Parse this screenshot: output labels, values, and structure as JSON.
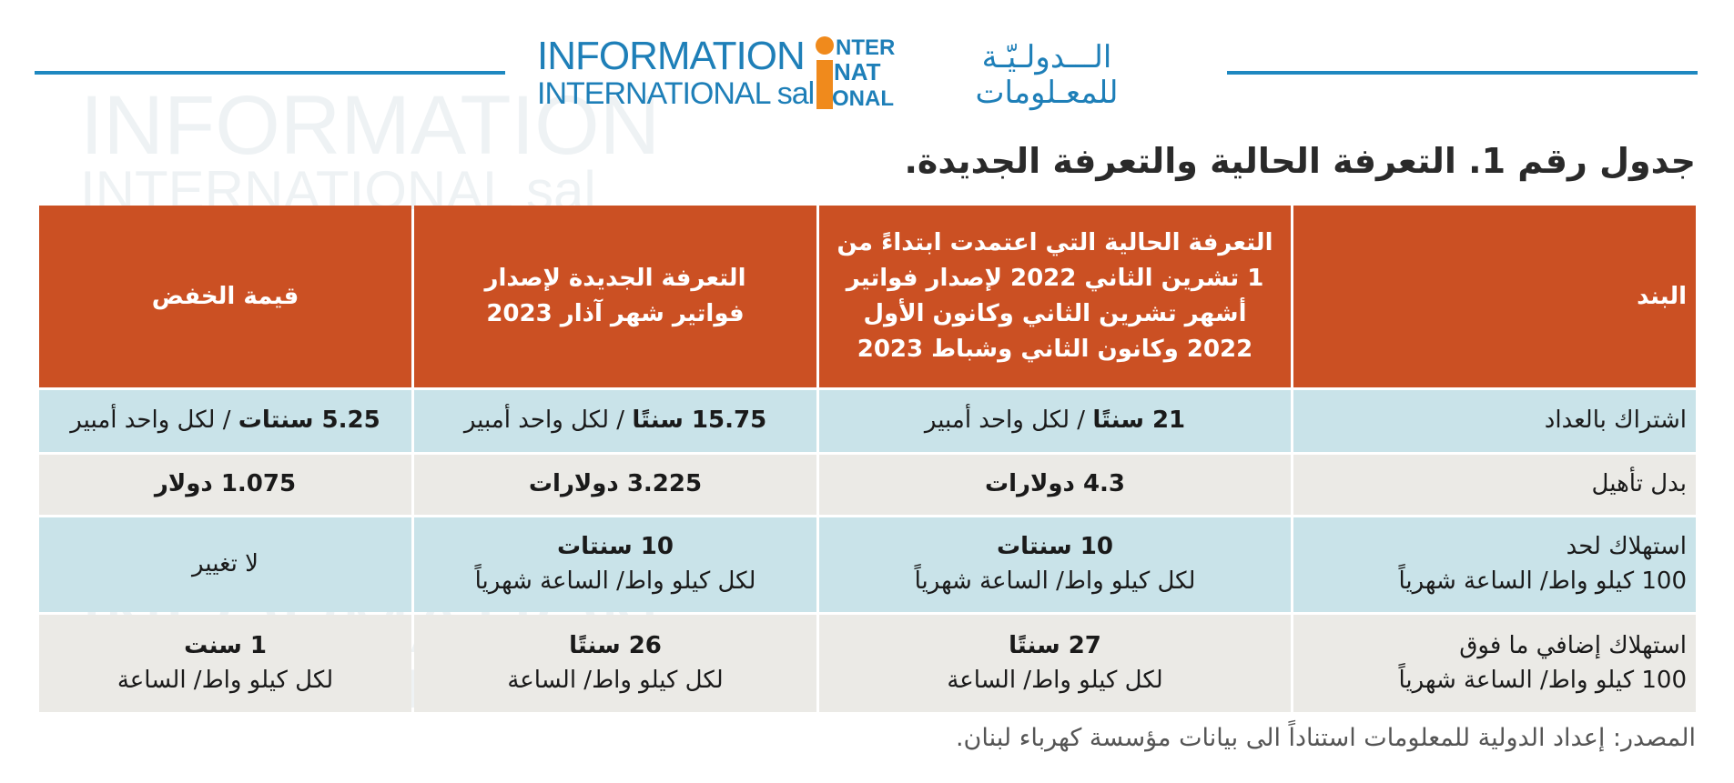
{
  "header": {
    "logo_en_line1": "INFORMATION",
    "logo_en_line2": "INTERNATIONAL sal",
    "logo_ar_line1": "الـــدولـيّـة",
    "logo_ar_line2": "للمعـلومات",
    "logo_i_letters": [
      "NTER",
      "NAT",
      "ONAL"
    ],
    "accent_color": "#1e88c0",
    "brand_orange": "#f08a1c"
  },
  "title": "جدول رقم 1. التعرفة الحالية والتعرفة الجديدة.",
  "table": {
    "headers": [
      "البند",
      "التعرفة الحالية التي اعتمدت ابتداءً من 1 تشرين الثاني 2022 لإصدار فواتير أشهر تشرين الثاني وكانون الأول 2022 وكانون الثاني وشباط 2023",
      "التعرفة الجديدة لإصدار فواتير شهر آذار 2023",
      "قيمة الخفض"
    ],
    "header_color": "#cb5023",
    "rows": [
      {
        "label": "اشتراك بالعداد",
        "current_bold": "21 سنتًا",
        "current_rest": " / لكل واحد أمبير",
        "new_bold": "15.75 سنتًا",
        "new_rest": " / لكل واحد أمبير",
        "cut_bold": "5.25 سنتات",
        "cut_rest": " / لكل واحد أمبير"
      },
      {
        "label": "بدل تأهيل",
        "current": "4.3 دولارات",
        "new": "3.225 دولارات",
        "cut": "1.075 دولار"
      },
      {
        "label_line1": "استهلاك لحد",
        "label_line2": "100 كيلو واط/ الساعة شهرياً",
        "current_bold": "10 سنتات",
        "current_sub": "لكل كيلو واط/ الساعة شهرياً",
        "new_bold": "10 سنتات",
        "new_sub": "لكل كيلو واط/ الساعة شهرياً",
        "cut": "لا تغيير"
      },
      {
        "label_line1": "استهلاك إضافي ما فوق",
        "label_line2": "100 كيلو واط/ الساعة شهرياً",
        "current_bold": "27 سنتًا",
        "current_sub": "لكل كيلو واط/ الساعة",
        "new_bold": "26 سنتًا",
        "new_sub": "لكل كيلو واط/ الساعة",
        "cut_bold": "1 سنت",
        "cut_sub": "لكل كيلو واط/ الساعة"
      }
    ],
    "row_colors": [
      "#c9e3e9",
      "#ebeae6"
    ]
  },
  "source": "المصدر: إعداد الدولية للمعلومات استناداً الى بيانات مؤسسة كهرباء لبنان."
}
